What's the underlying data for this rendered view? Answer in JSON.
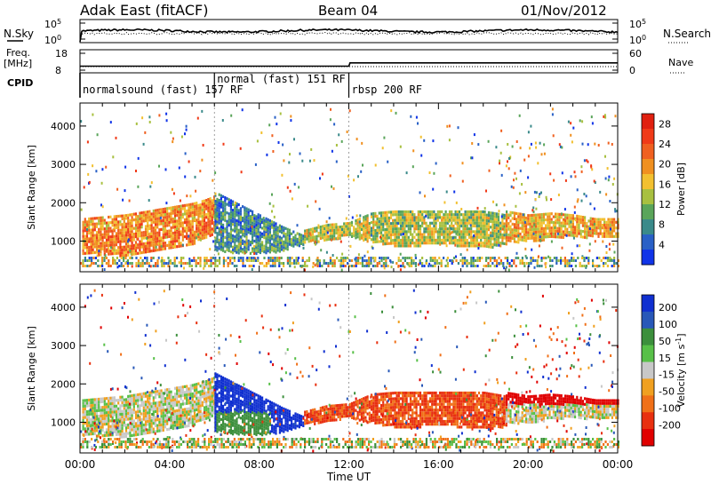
{
  "header": {
    "station": "Adak East (fitACF)",
    "beam": "Beam 04",
    "date": "01/Nov/2012"
  },
  "labels": {
    "nsky": "N.Sky",
    "nsearch": "N.Search",
    "freq": "Freq.",
    "mhz": "[MHz]",
    "nave": "Nave",
    "cpid": "CPID"
  },
  "chart_data": [
    {
      "type": "line",
      "name": "noise",
      "ylim_ticks": [
        "10^5",
        "10^0"
      ],
      "ylim_ticks_right": [
        "10^5",
        "10^0"
      ],
      "series": [
        {
          "name": "N.Sky",
          "style": "solid"
        },
        {
          "name": "N.Search",
          "style": "dotted"
        }
      ]
    },
    {
      "type": "line",
      "name": "frequency",
      "ylim_ticks": [
        "18",
        "8"
      ],
      "ylim_ticks_right": [
        "60",
        "0"
      ],
      "series": [
        {
          "name": "Freq.",
          "style": "solid",
          "x": [
            0,
            12,
            12.05,
            24
          ],
          "y": [
            10.9,
            10.9,
            12.3,
            12.3
          ]
        },
        {
          "name": "Nave",
          "style": "dotted",
          "x": [
            0,
            24
          ],
          "y": [
            14,
            14
          ]
        }
      ]
    },
    {
      "type": "table",
      "name": "cpid",
      "segments": [
        {
          "label": "normalsound (fast) 157 RF",
          "start": 0,
          "end": 6
        },
        {
          "label": "normal (fast) 151 RF",
          "start": 6,
          "end": 12
        },
        {
          "label": "rbsp 200 RF",
          "start": 12,
          "end": 24
        }
      ]
    },
    {
      "type": "heatmap",
      "name": "power",
      "xlabel": "",
      "ylabel": "Slant Range [km]",
      "xlim": [
        0,
        24
      ],
      "ylim": [
        200,
        4600
      ],
      "yticks": [
        1000,
        2000,
        3000,
        4000
      ],
      "colorbar": {
        "label": "Power [dB]",
        "ticks": [
          "4",
          "8",
          "12",
          "16",
          "20",
          "24",
          "28"
        ],
        "colors": [
          "#1034e8",
          "#2960c6",
          "#3a8a8a",
          "#5aa55a",
          "#a8c040",
          "#f2c030",
          "#f09020",
          "#f06020",
          "#f03a18",
          "#e02010"
        ]
      },
      "regions": [
        {
          "x": [
            0.1,
            1.0,
            2.0,
            3.0,
            4.0,
            5.0,
            5.6,
            6.0
          ],
          "low": [
            700,
            650,
            650,
            700,
            800,
            950,
            1100,
            1250
          ],
          "high": [
            1600,
            1650,
            1700,
            1800,
            1900,
            2000,
            2100,
            2200
          ],
          "value": 25
        },
        {
          "x": [
            6.0,
            7.0,
            8.0,
            9.0,
            10.0
          ],
          "low": [
            800,
            700,
            700,
            750,
            950
          ],
          "high": [
            2300,
            2000,
            1700,
            1400,
            1150
          ],
          "value": 12
        },
        {
          "x": [
            10.0,
            11.0,
            12.0,
            13.0,
            14.0,
            15.0,
            16.0,
            17.0,
            18.0,
            19.0
          ],
          "low": [
            950,
            1050,
            1150,
            1000,
            900,
            900,
            950,
            900,
            850,
            900
          ],
          "high": [
            1300,
            1450,
            1500,
            1750,
            1800,
            1800,
            1800,
            1800,
            1800,
            1700
          ],
          "value": 18
        },
        {
          "x": [
            19.0,
            20.0,
            21.0,
            22.0,
            23.0,
            24.0
          ],
          "low": [
            1000,
            1000,
            1100,
            1150,
            1100,
            1100
          ],
          "high": [
            1800,
            1700,
            1750,
            1700,
            1600,
            1600
          ],
          "value": 22
        }
      ]
    },
    {
      "type": "heatmap",
      "name": "velocity",
      "xlabel": "Time UT",
      "ylabel": "Slant Range [km]",
      "xlim": [
        0,
        24
      ],
      "ylim": [
        200,
        4600
      ],
      "yticks": [
        1000,
        2000,
        3000,
        4000
      ],
      "xticks": [
        "00:00",
        "04:00",
        "08:00",
        "12:00",
        "16:00",
        "20:00",
        "00:00"
      ],
      "colorbar": {
        "label": "Velocity [m s^-1]",
        "ticks": [
          "200",
          "100",
          "50",
          "15",
          "-15",
          "-50",
          "-100",
          "-200"
        ],
        "colors": [
          "#1030d0",
          "#2858b8",
          "#3c8f3c",
          "#58c048",
          "#c8c8c8",
          "#f0a020",
          "#f07018",
          "#e83010",
          "#e00000"
        ]
      },
      "regions": [
        {
          "x": [
            0.1,
            1.0,
            2.0,
            3.0,
            4.0,
            5.0,
            5.6,
            6.0
          ],
          "low": [
            700,
            650,
            650,
            700,
            800,
            950,
            1100,
            1250
          ],
          "high": [
            1600,
            1650,
            1700,
            1800,
            1900,
            2000,
            2100,
            2200
          ],
          "value": 0
        },
        {
          "x": [
            6.0,
            7.0,
            8.0,
            9.0,
            10.0
          ],
          "low": [
            800,
            700,
            700,
            750,
            950
          ],
          "high": [
            2300,
            2000,
            1700,
            1400,
            1150
          ],
          "value": 220
        },
        {
          "x": [
            10.0,
            11.0,
            12.0,
            13.0,
            14.0,
            15.0,
            16.0,
            17.0,
            18.0,
            19.0
          ],
          "low": [
            950,
            1050,
            1150,
            1000,
            900,
            900,
            950,
            900,
            850,
            900
          ],
          "high": [
            1300,
            1450,
            1500,
            1750,
            1800,
            1800,
            1800,
            1800,
            1800,
            1700
          ],
          "value": -80
        },
        {
          "x": [
            19.0,
            20.0,
            21.0,
            22.0,
            23.0,
            24.0
          ],
          "low": [
            1000,
            1000,
            1100,
            1150,
            1100,
            1100
          ],
          "high": [
            1800,
            1700,
            1750,
            1700,
            1600,
            1600
          ],
          "value": 0
        }
      ]
    }
  ]
}
